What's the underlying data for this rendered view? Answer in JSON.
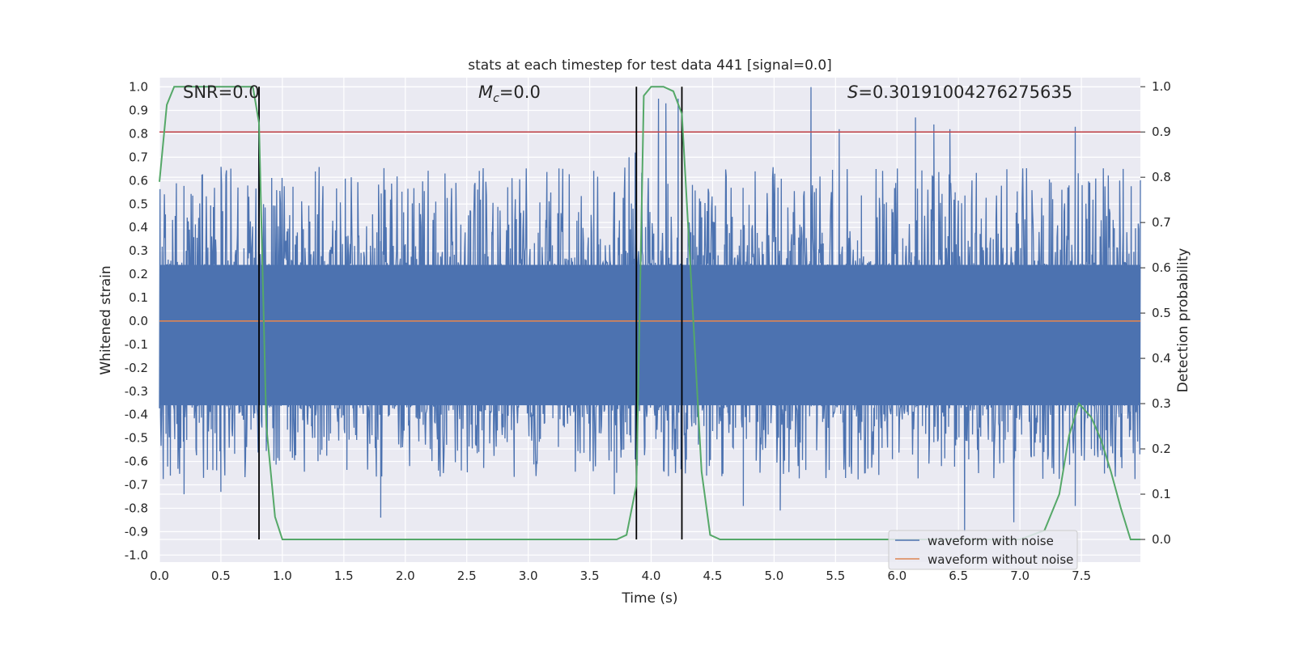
{
  "chart_data": {
    "type": "line",
    "title": "stats at each timestep for test data 441 [signal=0.0]",
    "xlabel": "Time (s)",
    "ylabel": "Whitened strain",
    "ylabel_right": "Detection probability",
    "xlim": [
      0.0,
      7.98
    ],
    "ylim": [
      -1.03,
      1.04
    ],
    "ylim_right": [
      -0.05,
      1.02
    ],
    "x_ticks": [
      "0.0",
      "0.5",
      "1.0",
      "1.5",
      "2.0",
      "2.5",
      "3.0",
      "3.5",
      "4.0",
      "4.5",
      "5.0",
      "5.5",
      "6.0",
      "6.5",
      "7.0",
      "7.5"
    ],
    "y_ticks": [
      "-1.0",
      "-0.9",
      "-0.8",
      "-0.7",
      "-0.6",
      "-0.5",
      "-0.4",
      "-0.3",
      "-0.2",
      "-0.1",
      "0.0",
      "0.1",
      "0.2",
      "0.3",
      "0.4",
      "0.5",
      "0.6",
      "0.7",
      "0.8",
      "0.9",
      "1.0"
    ],
    "y_ticks_right": [
      "0.0",
      "0.1",
      "0.2",
      "0.3",
      "0.4",
      "0.5",
      "0.6",
      "0.7",
      "0.8",
      "0.9",
      "1.0"
    ],
    "annotations": {
      "snr": "SNR=0.0",
      "mc_symbol": "M",
      "mc_subscript": "c",
      "mc_value": "=0.0",
      "s_symbol": "S",
      "s_value": "=0.30191004276275635"
    },
    "legend": {
      "position": "lower-right",
      "entries": [
        {
          "label": "waveform with noise",
          "color": "#4c72b0"
        },
        {
          "label": "waveform without noise",
          "color": "#dd8452"
        }
      ]
    },
    "threshold_right": 0.9,
    "threshold_color": "#c44e52",
    "event_lines_x": [
      0.81,
      3.88,
      4.25
    ],
    "noise": {
      "name": "waveform with noise",
      "color": "#4c72b0",
      "duration_s": 7.98,
      "typical_band": [
        -0.36,
        0.24
      ],
      "peaks_x": [
        0.78,
        0.81,
        3.82,
        3.87,
        4.06,
        4.12,
        4.22,
        5.3,
        5.53,
        6.15,
        6.3,
        6.43,
        7.45,
        7.84
      ],
      "peaks_y": [
        0.3,
        0.98,
        0.7,
        0.72,
        0.95,
        0.93,
        0.95,
        1.0,
        0.82,
        0.87,
        0.84,
        0.82,
        0.83,
        0.65
      ],
      "troughs_x": [
        0.2,
        0.5,
        1.8,
        3.7,
        4.5,
        4.75,
        5.05,
        6.55,
        6.95,
        7.45
      ],
      "troughs_y": [
        -0.74,
        -0.73,
        -0.84,
        -0.74,
        -0.47,
        -0.79,
        -0.81,
        -0.9,
        -0.86,
        -0.79
      ]
    },
    "clean": {
      "name": "waveform without noise",
      "color": "#dd8452",
      "value": 0.0
    },
    "probability": {
      "name": "detection probability",
      "color": "#55a868",
      "x": [
        0.0,
        0.06,
        0.12,
        0.2,
        0.4,
        0.6,
        0.72,
        0.76,
        0.81,
        0.87,
        0.94,
        1.0,
        1.5,
        2.0,
        3.0,
        3.5,
        3.72,
        3.8,
        3.88,
        3.94,
        4.0,
        4.1,
        4.18,
        4.25,
        4.33,
        4.41,
        4.48,
        4.56,
        5.0,
        6.0,
        6.5,
        7.0,
        7.2,
        7.32,
        7.4,
        7.48,
        7.58,
        7.66,
        7.74,
        7.82,
        7.9,
        7.98
      ],
      "y": [
        0.79,
        0.96,
        1.0,
        1.0,
        1.0,
        1.0,
        1.0,
        1.0,
        0.92,
        0.25,
        0.05,
        0.0,
        0.0,
        0.0,
        0.0,
        0.0,
        0.0,
        0.01,
        0.12,
        0.98,
        1.0,
        1.0,
        0.99,
        0.94,
        0.55,
        0.15,
        0.01,
        0.0,
        0.0,
        0.0,
        0.0,
        0.0,
        0.02,
        0.1,
        0.23,
        0.3,
        0.27,
        0.22,
        0.15,
        0.07,
        0.0,
        0.0
      ]
    }
  }
}
